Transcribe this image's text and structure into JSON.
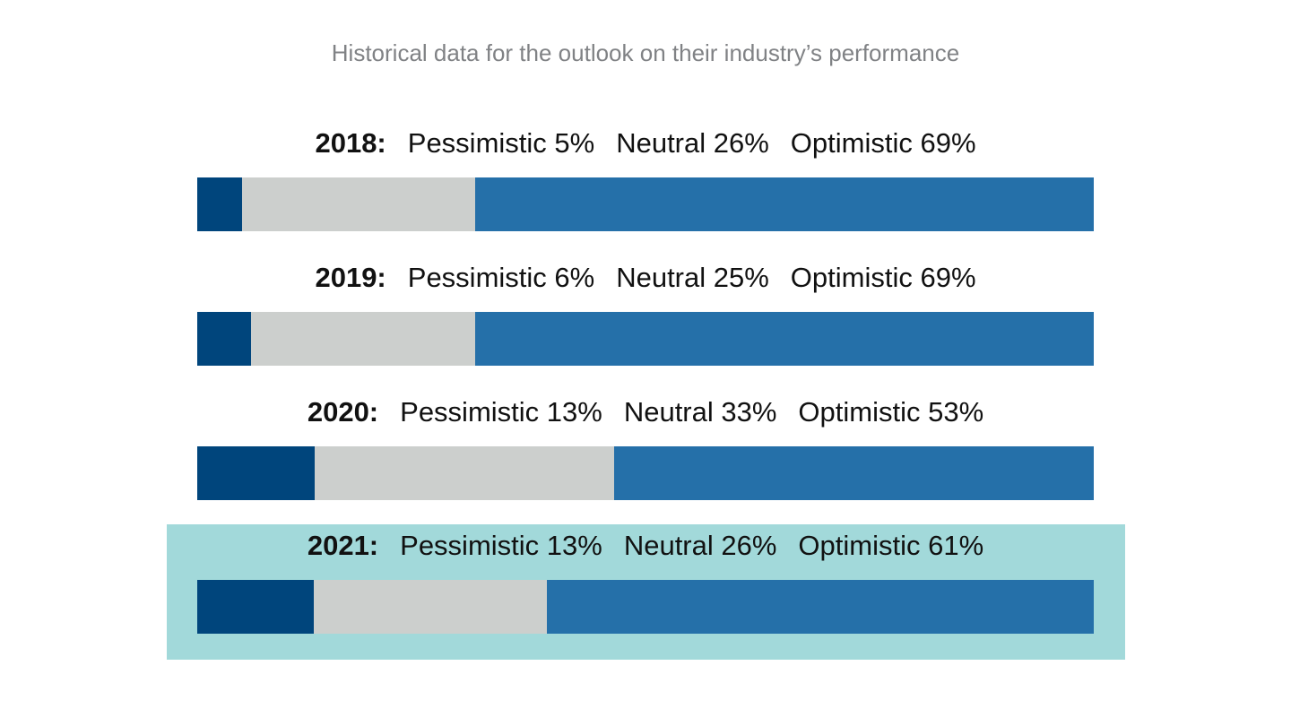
{
  "chart_data": {
    "type": "bar",
    "orientation": "horizontal-stacked-100",
    "title": "Historical data for the outlook on their industry’s performance",
    "categories": [
      "2018",
      "2019",
      "2020",
      "2021"
    ],
    "series": [
      {
        "name": "Pessimistic",
        "color": "#00457c",
        "values": [
          5,
          6,
          13,
          13
        ]
      },
      {
        "name": "Neutral",
        "color": "#cccfcd",
        "values": [
          26,
          25,
          33,
          26
        ]
      },
      {
        "name": "Optimistic",
        "color": "#2570a9",
        "values": [
          69,
          69,
          53,
          61
        ]
      }
    ],
    "highlighted_category": "2021",
    "highlight_color": "#a2d9da",
    "rows": [
      {
        "year": "2018:",
        "pessimistic": "Pessimistic 5%",
        "neutral": "Neutral 26%",
        "optimistic": "Optimistic 69%"
      },
      {
        "year": "2019:",
        "pessimistic": "Pessimistic 6%",
        "neutral": "Neutral 25%",
        "optimistic": "Optimistic 69%"
      },
      {
        "year": "2020:",
        "pessimistic": "Pessimistic 13%",
        "neutral": "Neutral 33%",
        "optimistic": "Optimistic 53%"
      },
      {
        "year": "2021:",
        "pessimistic": "Pessimistic 13%",
        "neutral": "Neutral 26%",
        "optimistic": "Optimistic 61%"
      }
    ]
  }
}
